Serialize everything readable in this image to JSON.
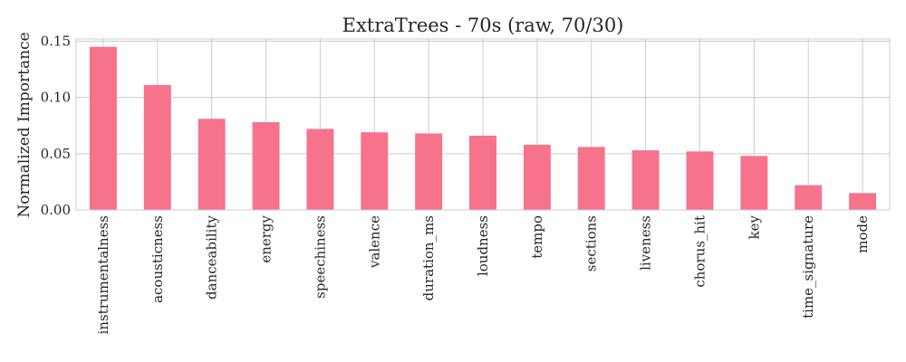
{
  "chart_data": {
    "type": "bar",
    "title": "ExtraTrees - 70s (raw, 70/30)",
    "xlabel": "",
    "ylabel": "Normalized Importance",
    "ylim": [
      0,
      0.152
    ],
    "yticks": [
      0.0,
      0.05,
      0.1,
      0.15
    ],
    "ytick_labels": [
      "0.00",
      "0.05",
      "0.10",
      "0.15"
    ],
    "categories": [
      "instrumentalness",
      "acousticness",
      "danceability",
      "energy",
      "speechiness",
      "valence",
      "duration_ms",
      "loudness",
      "tempo",
      "sections",
      "liveness",
      "chorus_hit",
      "key",
      "time_signature",
      "mode"
    ],
    "values": [
      0.145,
      0.111,
      0.081,
      0.078,
      0.072,
      0.069,
      0.068,
      0.066,
      0.058,
      0.056,
      0.053,
      0.052,
      0.048,
      0.022,
      0.015
    ],
    "bar_color": "#f7728b",
    "grid": true,
    "legend": "none"
  }
}
